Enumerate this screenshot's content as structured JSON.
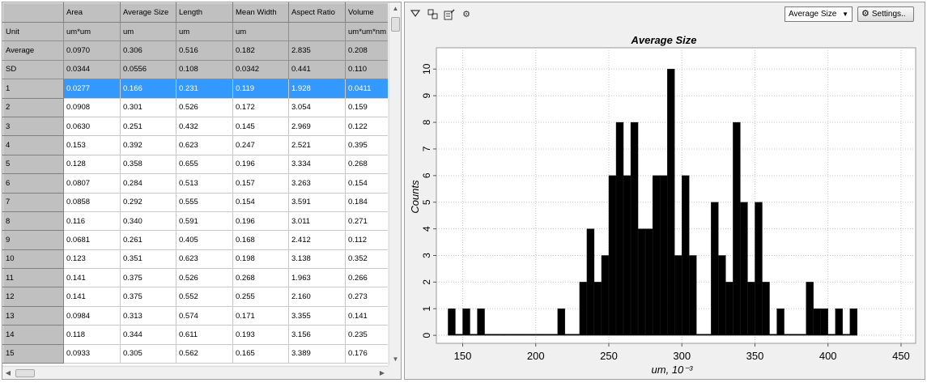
{
  "table": {
    "columns": [
      "",
      "Area",
      "Average Size",
      "Length",
      "Mean Width",
      "Aspect Ratio",
      "Volume"
    ],
    "units_row": [
      "Unit",
      "um*um",
      "um",
      "um",
      "um",
      "",
      "um*um*nm"
    ],
    "stats": [
      [
        "Average",
        "0.0970",
        "0.306",
        "0.516",
        "0.182",
        "2.835",
        "0.208"
      ],
      [
        "SD",
        "0.0344",
        "0.0556",
        "0.108",
        "0.0342",
        "0.441",
        "0.110"
      ]
    ],
    "selected_row": 0,
    "rows": [
      [
        "1",
        "0.0277",
        "0.166",
        "0.231",
        "0.119",
        "1.928",
        "0.0411"
      ],
      [
        "2",
        "0.0908",
        "0.301",
        "0.526",
        "0.172",
        "3.054",
        "0.159"
      ],
      [
        "3",
        "0.0630",
        "0.251",
        "0.432",
        "0.145",
        "2.969",
        "0.122"
      ],
      [
        "4",
        "0.153",
        "0.392",
        "0.623",
        "0.247",
        "2.521",
        "0.395"
      ],
      [
        "5",
        "0.128",
        "0.358",
        "0.655",
        "0.196",
        "3.334",
        "0.268"
      ],
      [
        "6",
        "0.0807",
        "0.284",
        "0.513",
        "0.157",
        "3.263",
        "0.154"
      ],
      [
        "7",
        "0.0858",
        "0.292",
        "0.555",
        "0.154",
        "3.591",
        "0.184"
      ],
      [
        "8",
        "0.116",
        "0.340",
        "0.591",
        "0.196",
        "3.011",
        "0.271"
      ],
      [
        "9",
        "0.0681",
        "0.261",
        "0.405",
        "0.168",
        "2.412",
        "0.112"
      ],
      [
        "10",
        "0.123",
        "0.351",
        "0.623",
        "0.198",
        "3.138",
        "0.352"
      ],
      [
        "11",
        "0.141",
        "0.375",
        "0.526",
        "0.268",
        "1.963",
        "0.266"
      ],
      [
        "12",
        "0.141",
        "0.375",
        "0.552",
        "0.255",
        "2.160",
        "0.273"
      ],
      [
        "13",
        "0.0984",
        "0.313",
        "0.574",
        "0.171",
        "3.355",
        "0.141"
      ],
      [
        "14",
        "0.118",
        "0.344",
        "0.611",
        "0.193",
        "3.156",
        "0.235"
      ],
      [
        "15",
        "0.0933",
        "0.305",
        "0.562",
        "0.165",
        "3.389",
        "0.176"
      ]
    ],
    "selection_color": "#3399ff",
    "header_color": "#c0c0c0"
  },
  "toolbar": {
    "icons": [
      "filter-icon",
      "select-region-icon",
      "edit-table-icon",
      "gear-icon"
    ],
    "measure_selected": "Average Size",
    "settings_label": "Settings.."
  },
  "chart_data": {
    "type": "bar",
    "title": "Average Size",
    "xlabel": "um, 10⁻³",
    "ylabel": "Counts",
    "xlim": [
      132,
      460
    ],
    "ylim": [
      -0.3,
      10.8
    ],
    "xticks": [
      150,
      200,
      250,
      300,
      350,
      400,
      450
    ],
    "yticks": [
      0,
      1,
      2,
      3,
      4,
      5,
      6,
      7,
      8,
      9,
      10
    ],
    "grid": true,
    "bar_color": "#000000",
    "bin_width": 5,
    "bin_start": 140,
    "counts": [
      1,
      0,
      1,
      0,
      1,
      0,
      0,
      0,
      0,
      0,
      0,
      0,
      0,
      0,
      0,
      1,
      0,
      0,
      2,
      4,
      2,
      3,
      6,
      8,
      6,
      8,
      4,
      4,
      6,
      6,
      10,
      3,
      6,
      3,
      0,
      0,
      5,
      3,
      2,
      8,
      5,
      2,
      5,
      2,
      0,
      1,
      0,
      0,
      0,
      2,
      1,
      1,
      0,
      1,
      0,
      1
    ]
  }
}
